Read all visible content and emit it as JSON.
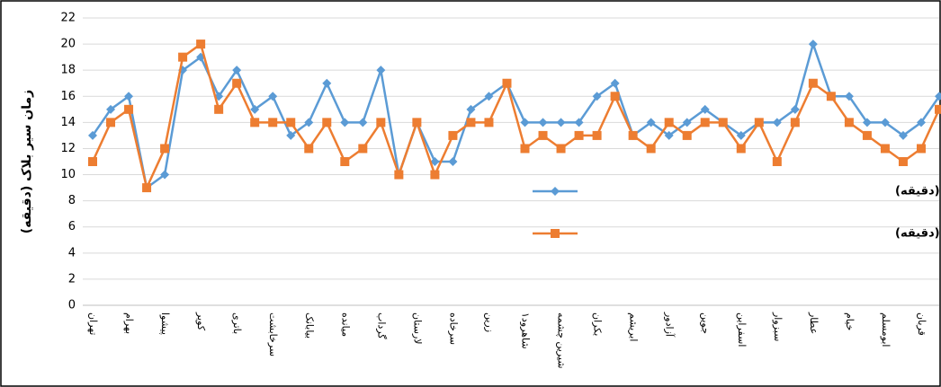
{
  "chart_data": {
    "type": "line",
    "y_label": "زمان سیر بلاک (دقیقه)",
    "categories": [
      "تهران",
      null,
      "بهرام",
      null,
      "پیشوا",
      null,
      "کویر",
      null,
      "باتری",
      null,
      "سرخابشت",
      null,
      "بیابانک",
      null,
      "میانده",
      null,
      "گرداب",
      null,
      "لارستان",
      null,
      "سرخاده",
      null,
      "زرین",
      null,
      "شاهرود۱",
      null,
      "شیرین چشمه",
      null,
      "بکران",
      null,
      "ابریشم",
      null,
      "آزادور",
      null,
      "جوین",
      null,
      "اسفراین",
      null,
      "سبزوار",
      null,
      "عطار",
      null,
      "خیام",
      null,
      "ابومسلم",
      null,
      "قربان",
      null
    ],
    "series": [
      {
        "name": "مدت سیر تا ایستگاه بعد طبق برنامه (دقیقه)",
        "color": "#5b9bd5",
        "marker": "diamond",
        "values": [
          13,
          15,
          16,
          9,
          10,
          18,
          19,
          16,
          18,
          15,
          16,
          13,
          14,
          17,
          14,
          14,
          18,
          10,
          14,
          11,
          11,
          15,
          16,
          17,
          14,
          14,
          14,
          14,
          16,
          17,
          13,
          14,
          13,
          14,
          15,
          14,
          13,
          14,
          14,
          15,
          20,
          16,
          16,
          14,
          14,
          13,
          14,
          16
        ]
      },
      {
        "name": "مدت سیر محاسبه شده توسط نرم افزار (دقیقه)",
        "color": "#ed7d31",
        "marker": "square",
        "values": [
          11,
          14,
          15,
          9,
          12,
          19,
          20,
          15,
          17,
          14,
          14,
          14,
          12,
          14,
          11,
          12,
          14,
          10,
          14,
          10,
          13,
          14,
          14,
          17,
          12,
          13,
          12,
          13,
          13,
          16,
          13,
          12,
          14,
          13,
          14,
          14,
          12,
          14,
          11,
          14,
          17,
          16,
          14,
          13,
          12,
          11,
          12,
          15
        ]
      }
    ],
    "ylim": [
      0,
      22
    ],
    "yticks": [
      0,
      2,
      4,
      6,
      8,
      10,
      12,
      14,
      16,
      18,
      20,
      22
    ],
    "grid": true
  }
}
